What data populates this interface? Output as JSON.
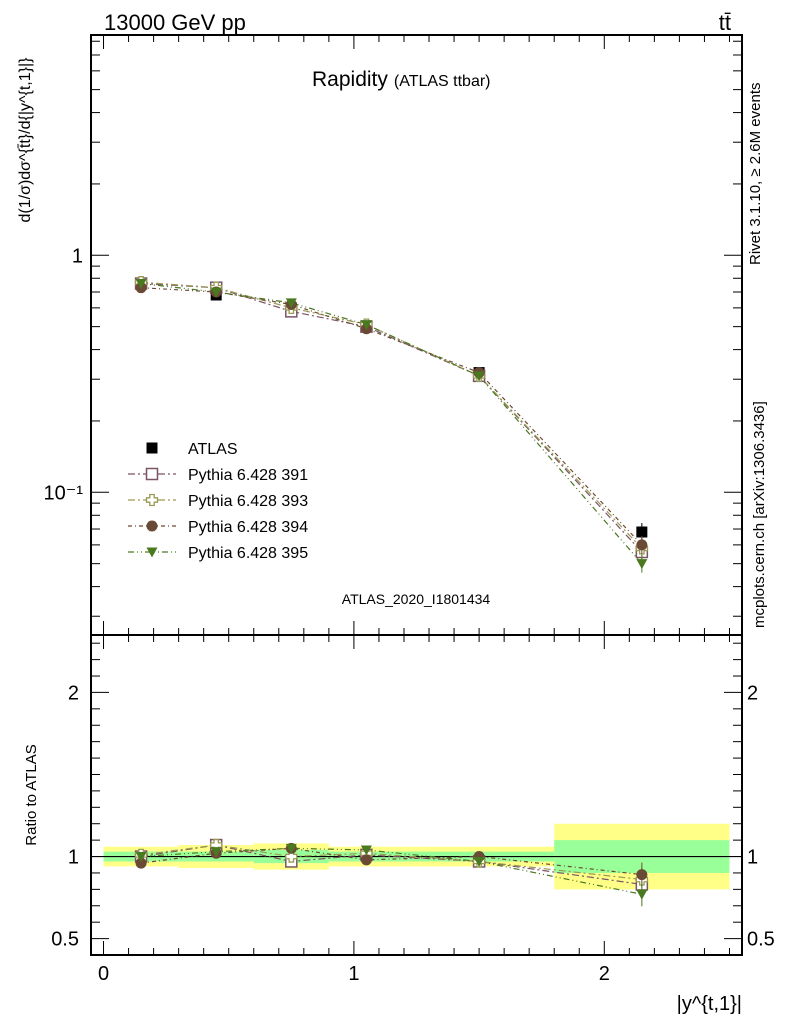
{
  "header": {
    "energy_label": "13000 GeV pp",
    "process_label": "tt̄"
  },
  "title": {
    "main": "Rapidity",
    "sub": "(ATLAS ttbar)"
  },
  "side_texts": {
    "rivet": "Rivet 3.1.10, ≥ 2.6M events",
    "mcplots": "mcplots.cern.ch [arXiv:1306.3436]"
  },
  "analysis_label": "ATLAS_2020_I1801434",
  "colors": {
    "atlas": "#000000",
    "p391": "#7a5565",
    "p393": "#9a9a55",
    "p394": "#6b4a35",
    "p395": "#4a7a20",
    "band_green": "#99ff99",
    "band_yellow": "#ffff88"
  },
  "chart_data": [
    {
      "type": "scatter",
      "panel": "main",
      "ylabel": "d(1/σ)dσ^{t̄t}/d{|y^{t,1}|}",
      "yscale": "log",
      "ylim": [
        0.025,
        8.5
      ],
      "xlim": [
        -0.05,
        2.55
      ],
      "y_tick_labels": [
        "10⁻¹",
        "1"
      ],
      "x": [
        0.15,
        0.45,
        0.75,
        1.05,
        1.5,
        2.15
      ],
      "x_bins": [
        [
          0,
          0.3
        ],
        [
          0.3,
          0.6
        ],
        [
          0.6,
          0.9
        ],
        [
          0.9,
          1.2
        ],
        [
          1.2,
          1.8
        ],
        [
          1.8,
          2.5
        ]
      ],
      "legend_position": "lower-left",
      "series": [
        {
          "name": "ATLAS",
          "marker": "square-filled",
          "values": [
            0.76,
            0.68,
            0.6,
            0.5,
            0.32,
            0.068
          ]
        },
        {
          "name": "Pythia 6.428 391",
          "marker": "square-open",
          "values": [
            0.76,
            0.73,
            0.58,
            0.5,
            0.31,
            0.056
          ]
        },
        {
          "name": "Pythia 6.428 393",
          "marker": "cross-open",
          "values": [
            0.77,
            0.73,
            0.6,
            0.51,
            0.31,
            0.058
          ]
        },
        {
          "name": "Pythia 6.428 394",
          "marker": "circle-filled",
          "values": [
            0.73,
            0.7,
            0.62,
            0.49,
            0.32,
            0.06
          ]
        },
        {
          "name": "Pythia 6.428 395",
          "marker": "triangle-down-filled",
          "values": [
            0.76,
            0.7,
            0.63,
            0.51,
            0.31,
            0.05
          ]
        }
      ]
    },
    {
      "type": "scatter",
      "panel": "ratio",
      "ylabel": "Ratio to ATLAS",
      "ylim": [
        0.4,
        2.35
      ],
      "xlim": [
        -0.05,
        2.55
      ],
      "y_ticks": [
        0.5,
        1,
        2
      ],
      "y_tick_labels": [
        "0.5",
        "1",
        "2"
      ],
      "x_ticks": [
        0,
        1,
        2
      ],
      "x_tick_labels": [
        "0",
        "1",
        "2"
      ],
      "xlabel": "|y^{t,1}|",
      "x": [
        0.15,
        0.45,
        0.75,
        1.05,
        1.5,
        2.15
      ],
      "bands": {
        "bins": [
          [
            0,
            0.3
          ],
          [
            0.3,
            0.6
          ],
          [
            0.6,
            0.9
          ],
          [
            0.9,
            1.2
          ],
          [
            1.2,
            1.8
          ],
          [
            1.8,
            2.5
          ]
        ],
        "stat": [
          0.03,
          0.03,
          0.04,
          0.03,
          0.03,
          0.1
        ],
        "total": [
          0.06,
          0.07,
          0.08,
          0.06,
          0.06,
          0.2
        ]
      },
      "series": [
        {
          "name": "Pythia 6.428 391",
          "values": [
            1.0,
            1.07,
            0.97,
            1.01,
            0.97,
            0.83
          ]
        },
        {
          "name": "Pythia 6.428 393",
          "values": [
            1.01,
            1.07,
            1.0,
            1.02,
            0.97,
            0.86
          ]
        },
        {
          "name": "Pythia 6.428 394",
          "values": [
            0.96,
            1.02,
            1.05,
            0.98,
            1.0,
            0.89
          ]
        },
        {
          "name": "Pythia 6.428 395",
          "values": [
            1.0,
            1.03,
            1.05,
            1.04,
            0.97,
            0.77
          ]
        }
      ]
    }
  ]
}
